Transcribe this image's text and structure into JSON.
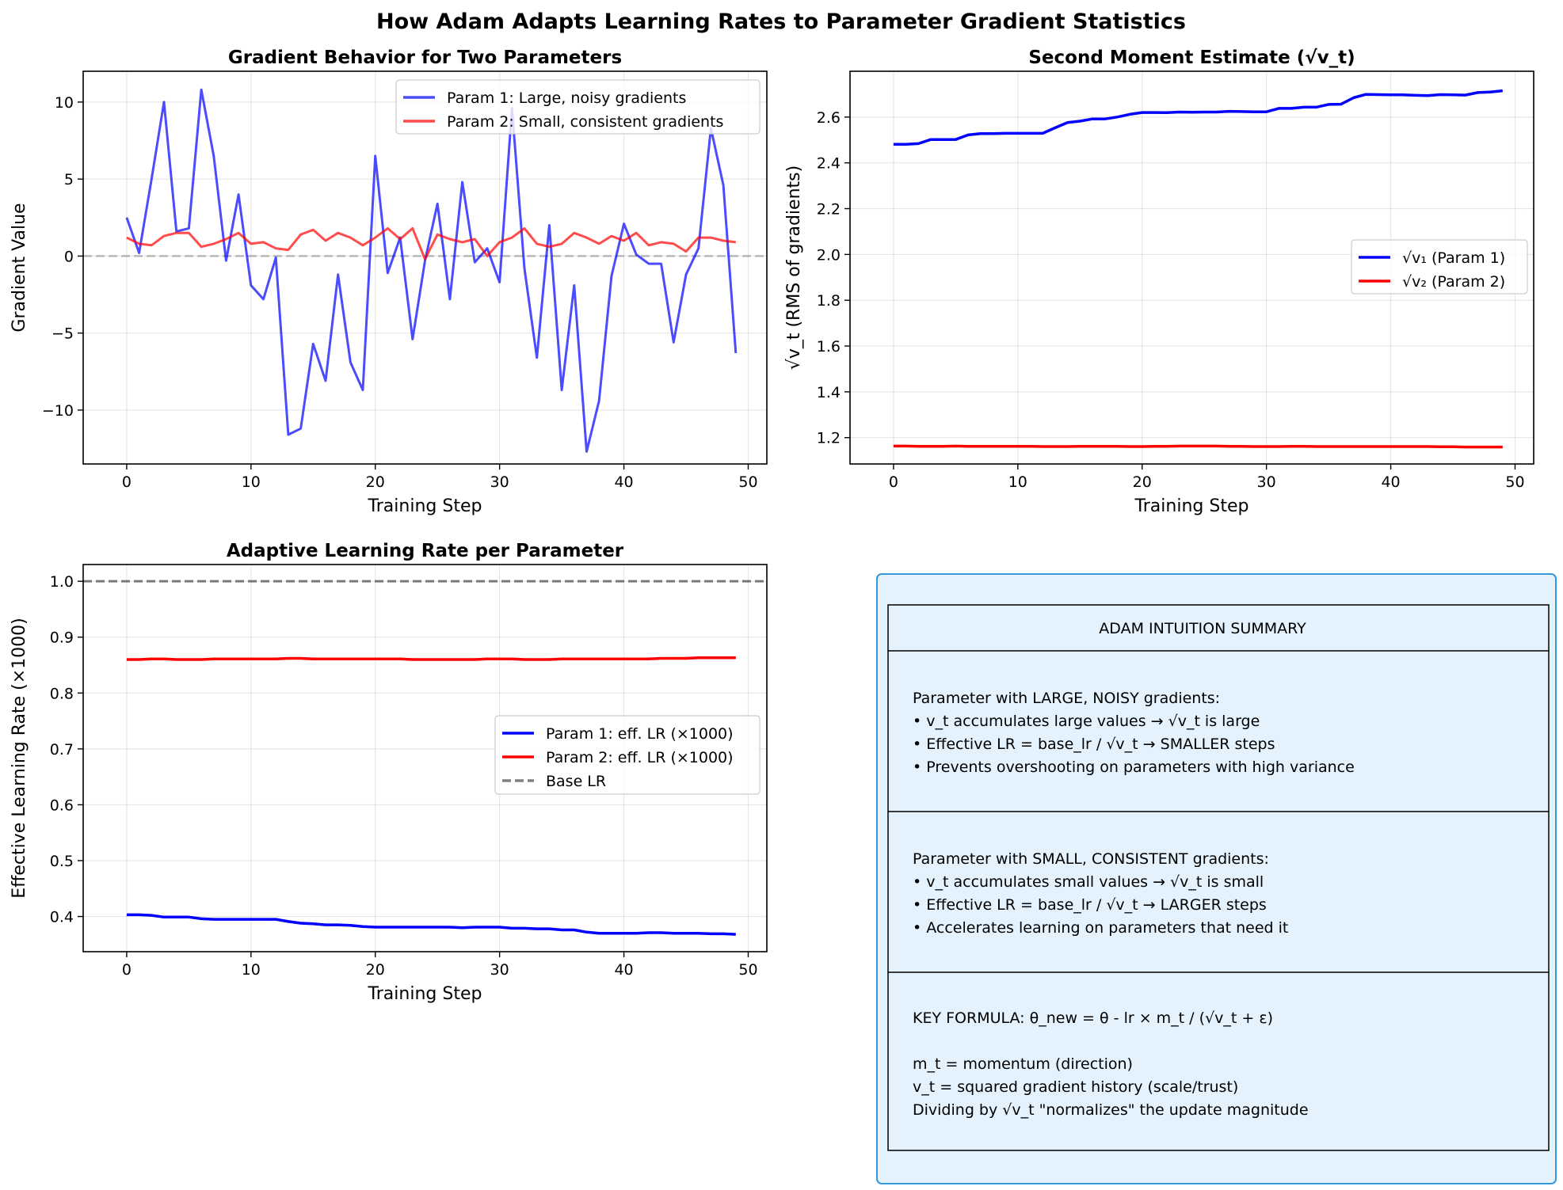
{
  "figure": {
    "suptitle": "How Adam Adapts Learning Rates to Parameter Gradient Statistics"
  },
  "colors": {
    "param1": "#0000ff",
    "param2": "#ff0000",
    "baseline": "#808080",
    "box_fill": "#e3f2fd",
    "box_edge": "#3498db"
  },
  "chart_data": [
    {
      "type": "line",
      "title": "Gradient Behavior for Two Parameters",
      "xlabel": "Training Step",
      "ylabel": "Gradient Value",
      "xlim": [
        -3.5,
        51.5
      ],
      "ylim": [
        -13.5,
        12
      ],
      "xticks": [
        0,
        10,
        20,
        30,
        40,
        50
      ],
      "yticks": [
        -10,
        -5,
        0,
        5,
        10
      ],
      "ytick_labels": [
        "−10",
        "−5",
        "0",
        "5",
        "10"
      ],
      "grid": true,
      "legend": "top-right",
      "x": [
        0,
        1,
        2,
        3,
        4,
        5,
        6,
        7,
        8,
        9,
        10,
        11,
        12,
        13,
        14,
        15,
        16,
        17,
        18,
        19,
        20,
        21,
        22,
        23,
        24,
        25,
        26,
        27,
        28,
        29,
        30,
        31,
        32,
        33,
        34,
        35,
        36,
        37,
        38,
        39,
        40,
        41,
        42,
        43,
        44,
        45,
        46,
        47,
        48,
        49
      ],
      "series": [
        {
          "name": "Param 1: Large, noisy gradients",
          "values": [
            2.5,
            0.2,
            5.0,
            10.0,
            1.6,
            1.8,
            10.8,
            6.5,
            -0.3,
            4.0,
            -1.9,
            -2.8,
            -0.1,
            -11.6,
            -11.2,
            -5.7,
            -8.1,
            -1.2,
            -6.9,
            -8.7,
            6.5,
            -1.1,
            1.2,
            -5.4,
            -0.3,
            3.4,
            -2.8,
            4.8,
            -0.4,
            0.5,
            -1.7,
            9.6,
            -0.8,
            -6.6,
            2.0,
            -8.7,
            -1.9,
            -12.7,
            -9.4,
            -1.3,
            2.1,
            0.1,
            -0.5,
            -0.5,
            -5.6,
            -1.2,
            0.5,
            8.3,
            4.6,
            -6.3
          ]
        },
        {
          "name": "Param 2: Small, consistent gradients",
          "values": [
            1.2,
            0.8,
            0.7,
            1.3,
            1.5,
            1.5,
            0.6,
            0.8,
            1.1,
            1.5,
            0.8,
            0.9,
            0.5,
            0.4,
            1.4,
            1.7,
            1.0,
            1.5,
            1.2,
            0.7,
            1.2,
            1.8,
            1.1,
            1.8,
            -0.2,
            1.4,
            1.1,
            0.9,
            1.1,
            0.0,
            0.9,
            1.2,
            1.8,
            0.8,
            0.6,
            0.8,
            1.5,
            1.2,
            0.8,
            1.3,
            1.0,
            1.5,
            0.7,
            0.9,
            0.8,
            0.3,
            1.2,
            1.2,
            1.0,
            0.9
          ]
        }
      ],
      "hline": {
        "y": 0,
        "style": "dashed"
      }
    },
    {
      "type": "line",
      "title": "Second Moment Estimate (√v_t)",
      "xlabel": "Training Step",
      "ylabel": "√v_t (RMS of gradients)",
      "xlim": [
        -3.5,
        51.5
      ],
      "ylim": [
        1.085,
        2.8
      ],
      "xticks": [
        0,
        10,
        20,
        30,
        40,
        50
      ],
      "yticks": [
        1.2,
        1.4,
        1.6,
        1.8,
        2.0,
        2.2,
        2.4,
        2.6
      ],
      "ytick_labels": [
        "1.2",
        "1.4",
        "1.6",
        "1.8",
        "2.0",
        "2.2",
        "2.4",
        "2.6"
      ],
      "grid": true,
      "legend": "center-right",
      "x": [
        0,
        1,
        2,
        3,
        4,
        5,
        6,
        7,
        8,
        9,
        10,
        11,
        12,
        13,
        14,
        15,
        16,
        17,
        18,
        19,
        20,
        21,
        22,
        23,
        24,
        25,
        26,
        27,
        28,
        29,
        30,
        31,
        32,
        33,
        34,
        35,
        36,
        37,
        38,
        39,
        40,
        41,
        42,
        43,
        44,
        45,
        46,
        47,
        48,
        49
      ],
      "series": [
        {
          "name": "√v₁ (Param 1)",
          "values": [
            2.481,
            2.481,
            2.484,
            2.502,
            2.502,
            2.502,
            2.522,
            2.528,
            2.528,
            2.529,
            2.529,
            2.529,
            2.529,
            2.553,
            2.576,
            2.582,
            2.592,
            2.592,
            2.6,
            2.612,
            2.62,
            2.62,
            2.619,
            2.622,
            2.621,
            2.622,
            2.622,
            2.625,
            2.624,
            2.623,
            2.623,
            2.638,
            2.638,
            2.643,
            2.643,
            2.655,
            2.656,
            2.684,
            2.699,
            2.698,
            2.697,
            2.697,
            2.695,
            2.694,
            2.698,
            2.697,
            2.696,
            2.707,
            2.709,
            2.715
          ]
        },
        {
          "name": "√v₂ (Param 2)",
          "values": [
            1.163,
            1.163,
            1.162,
            1.162,
            1.162,
            1.163,
            1.162,
            1.162,
            1.162,
            1.162,
            1.162,
            1.162,
            1.161,
            1.161,
            1.161,
            1.162,
            1.162,
            1.162,
            1.162,
            1.161,
            1.161,
            1.162,
            1.162,
            1.163,
            1.163,
            1.163,
            1.163,
            1.162,
            1.162,
            1.161,
            1.161,
            1.161,
            1.162,
            1.162,
            1.161,
            1.161,
            1.161,
            1.161,
            1.161,
            1.161,
            1.161,
            1.161,
            1.161,
            1.161,
            1.16,
            1.16,
            1.159,
            1.159,
            1.159,
            1.159
          ]
        }
      ]
    },
    {
      "type": "line",
      "title": "Adaptive Learning Rate per Parameter",
      "xlabel": "Training Step",
      "ylabel": "Effective Learning Rate (×1000)",
      "xlim": [
        -3.5,
        51.5
      ],
      "ylim": [
        0.337,
        1.03
      ],
      "xticks": [
        0,
        10,
        20,
        30,
        40,
        50
      ],
      "yticks": [
        0.4,
        0.5,
        0.6,
        0.7,
        0.8,
        0.9,
        1.0
      ],
      "ytick_labels": [
        "0.4",
        "0.5",
        "0.6",
        "0.7",
        "0.8",
        "0.9",
        "1.0"
      ],
      "grid": true,
      "legend": "center-right",
      "x": [
        0,
        1,
        2,
        3,
        4,
        5,
        6,
        7,
        8,
        9,
        10,
        11,
        12,
        13,
        14,
        15,
        16,
        17,
        18,
        19,
        20,
        21,
        22,
        23,
        24,
        25,
        26,
        27,
        28,
        29,
        30,
        31,
        32,
        33,
        34,
        35,
        36,
        37,
        38,
        39,
        40,
        41,
        42,
        43,
        44,
        45,
        46,
        47,
        48,
        49
      ],
      "series": [
        {
          "name": "Param 1: eff. LR (×1000)",
          "values": [
            0.403,
            0.403,
            0.402,
            0.399,
            0.399,
            0.399,
            0.396,
            0.395,
            0.395,
            0.395,
            0.395,
            0.395,
            0.395,
            0.391,
            0.388,
            0.387,
            0.385,
            0.385,
            0.384,
            0.382,
            0.381,
            0.381,
            0.381,
            0.381,
            0.381,
            0.381,
            0.381,
            0.38,
            0.381,
            0.381,
            0.381,
            0.379,
            0.379,
            0.378,
            0.378,
            0.376,
            0.376,
            0.372,
            0.37,
            0.37,
            0.37,
            0.37,
            0.371,
            0.371,
            0.37,
            0.37,
            0.37,
            0.369,
            0.369,
            0.368
          ]
        },
        {
          "name": "Param 2: eff. LR (×1000)",
          "values": [
            0.86,
            0.86,
            0.861,
            0.861,
            0.86,
            0.86,
            0.86,
            0.861,
            0.861,
            0.861,
            0.861,
            0.861,
            0.861,
            0.862,
            0.862,
            0.861,
            0.861,
            0.861,
            0.861,
            0.861,
            0.861,
            0.861,
            0.861,
            0.86,
            0.86,
            0.86,
            0.86,
            0.86,
            0.86,
            0.861,
            0.861,
            0.861,
            0.86,
            0.86,
            0.86,
            0.861,
            0.861,
            0.861,
            0.861,
            0.861,
            0.861,
            0.861,
            0.861,
            0.862,
            0.862,
            0.862,
            0.863,
            0.863,
            0.863,
            0.863
          ]
        }
      ],
      "hline": {
        "y": 1.0,
        "style": "dashed",
        "name": "Base LR"
      }
    }
  ],
  "summary_box": {
    "header": "ADAM INTUITION SUMMARY",
    "section1": {
      "heading": "Parameter with LARGE, NOISY gradients:",
      "lines": [
        "• v_t accumulates large values → √v_t is large",
        "• Effective LR = base_lr / √v_t → SMALLER steps",
        "• Prevents overshooting on parameters with high variance"
      ]
    },
    "section2": {
      "heading": "Parameter with SMALL, CONSISTENT gradients:",
      "lines": [
        "• v_t accumulates small values → √v_t is small",
        "• Effective LR = base_lr / √v_t → LARGER steps",
        "• Accelerates learning on parameters that need it"
      ]
    },
    "section3": {
      "formula": "KEY FORMULA:  θ_new = θ - lr × m_t / (√v_t + ε)",
      "lines": [
        "m_t = momentum (direction)",
        "v_t = squared gradient history (scale/trust)",
        "Dividing by √v_t \"normalizes\" the update magnitude"
      ]
    }
  }
}
